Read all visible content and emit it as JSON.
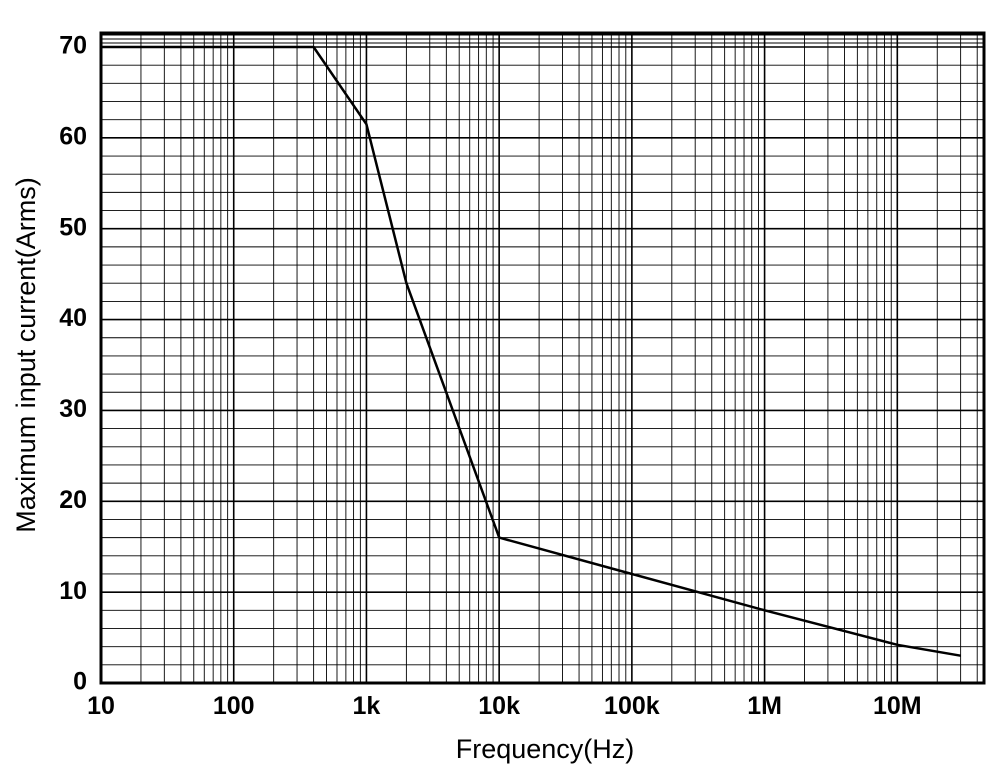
{
  "chart_data": {
    "type": "line",
    "xlabel": "Frequency(Hz)",
    "ylabel": "Maximum input current(Arms)",
    "x_scale": "log",
    "xlim": [
      10,
      45000000
    ],
    "ylim": [
      0,
      70
    ],
    "grid": true,
    "x_ticks": [
      {
        "value": 10,
        "label": "10"
      },
      {
        "value": 100,
        "label": "100"
      },
      {
        "value": 1000,
        "label": "1k"
      },
      {
        "value": 10000,
        "label": "10k"
      },
      {
        "value": 100000,
        "label": "100k"
      },
      {
        "value": 1000000,
        "label": "1M"
      },
      {
        "value": 10000000,
        "label": "10M"
      }
    ],
    "y_ticks": [
      {
        "value": 0,
        "label": "0"
      },
      {
        "value": 10,
        "label": "10"
      },
      {
        "value": 20,
        "label": "20"
      },
      {
        "value": 30,
        "label": "30"
      },
      {
        "value": 40,
        "label": "40"
      },
      {
        "value": 50,
        "label": "50"
      },
      {
        "value": 60,
        "label": "60"
      },
      {
        "value": 70,
        "label": "70"
      }
    ],
    "line_color": "#000000",
    "series": [
      {
        "x": [
          10,
          400,
          1000,
          2000,
          10000,
          100000,
          1000000,
          10000000,
          30000000
        ],
        "y": [
          70,
          70,
          61.5,
          44,
          16,
          12,
          8,
          4.2,
          3
        ]
      }
    ]
  }
}
